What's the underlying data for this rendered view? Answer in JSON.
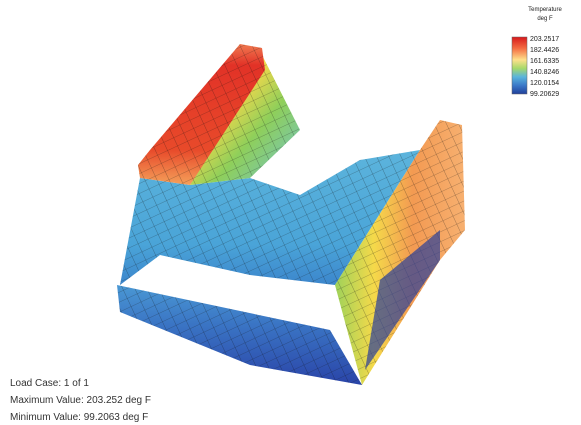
{
  "legend": {
    "title": "Temperature",
    "unit": "deg F",
    "labels": [
      "203.2517",
      "182.4426",
      "161.6335",
      "140.8246",
      "120.0154",
      "99.20629"
    ]
  },
  "info": {
    "load_case": "Load Case:  1 of 1",
    "maximum": "Maximum Value: 203.252 deg F",
    "minimum": "Minimum Value: 99.2063 deg F"
  }
}
